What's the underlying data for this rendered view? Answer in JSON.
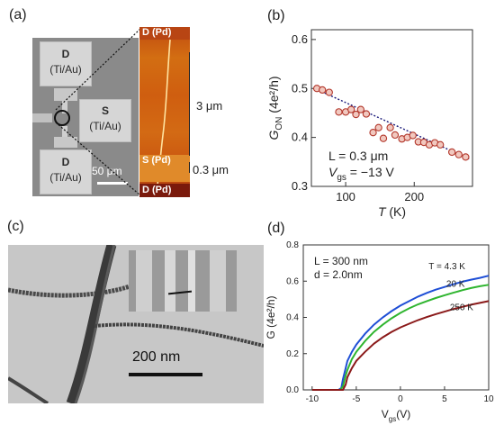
{
  "panel_a": {
    "label": "(a)",
    "pad_top": {
      "name": "D",
      "material": "(Ti/Au)"
    },
    "pad_mid": {
      "name": "S",
      "material": "(Ti/Au)"
    },
    "pad_bot": {
      "name": "D",
      "material": "(Ti/Au)"
    },
    "scale_sem": "50 μm",
    "afm_top": "D (Pd)",
    "afm_mid": "S (Pd)",
    "afm_bot": "D (Pd)",
    "scale_3um": "3 μm",
    "scale_03um": "0.3 μm"
  },
  "panel_c": {
    "label": "(c)",
    "scale": "200 nm"
  },
  "chart_data": [
    {
      "panel": "(b)",
      "type": "scatter",
      "xlabel_main": "T",
      "xlabel_unit": " (K)",
      "ylabel_main": "G",
      "ylabel_sub": "ON",
      "ylabel_unit": " (4e²/h)",
      "xlim": [
        50,
        285
      ],
      "ylim": [
        0.3,
        0.62
      ],
      "xticks": [
        100,
        200
      ],
      "yticks": [
        0.3,
        0.4,
        0.5,
        0.6
      ],
      "annotations": {
        "L": "L = 0.3 μm",
        "V_name": "V",
        "V_sub": "gs",
        "V_val": " = −13 V"
      },
      "points": [
        [
          58,
          0.5
        ],
        [
          66,
          0.497
        ],
        [
          76,
          0.492
        ],
        [
          90,
          0.452
        ],
        [
          100,
          0.452
        ],
        [
          108,
          0.457
        ],
        [
          115,
          0.447
        ],
        [
          122,
          0.457
        ],
        [
          130,
          0.448
        ],
        [
          140,
          0.41
        ],
        [
          148,
          0.42
        ],
        [
          155,
          0.398
        ],
        [
          165,
          0.42
        ],
        [
          172,
          0.405
        ],
        [
          182,
          0.397
        ],
        [
          190,
          0.4
        ],
        [
          198,
          0.404
        ],
        [
          206,
          0.391
        ],
        [
          214,
          0.39
        ],
        [
          222,
          0.385
        ],
        [
          230,
          0.389
        ],
        [
          238,
          0.385
        ],
        [
          255,
          0.37
        ],
        [
          265,
          0.365
        ],
        [
          275,
          0.36
        ]
      ],
      "fit_line": [
        [
          55,
          0.5
        ],
        [
          280,
          0.356
        ]
      ]
    },
    {
      "panel": "(d)",
      "type": "line",
      "xlabel_main": "V",
      "xlabel_sub": "gs",
      "xlabel_unit": "(V)",
      "ylabel": "G (4e²/h)",
      "xlim": [
        -11,
        10
      ],
      "ylim": [
        0,
        0.8
      ],
      "xticks": [
        -10,
        -5,
        0,
        5,
        10
      ],
      "yticks": [
        0.0,
        0.2,
        0.4,
        0.6,
        0.8
      ],
      "annotations": {
        "L": "L = 300 nm",
        "d": "d = 2.0nm"
      },
      "series": [
        {
          "name": "T = 4.3 K",
          "color": "#1f4fd6",
          "x": [
            -10,
            -7,
            -6.7,
            -6.5,
            -6.2,
            -6,
            -5.5,
            -5,
            -4,
            -3,
            -2,
            -1,
            0,
            1,
            2,
            3,
            4,
            5,
            6,
            7,
            8,
            9,
            10
          ],
          "y": [
            0,
            0,
            0.01,
            0.06,
            0.12,
            0.16,
            0.21,
            0.25,
            0.31,
            0.36,
            0.4,
            0.435,
            0.465,
            0.49,
            0.515,
            0.535,
            0.553,
            0.568,
            0.583,
            0.597,
            0.608,
            0.618,
            0.63
          ]
        },
        {
          "name": "20 K",
          "color": "#2fb52f",
          "x": [
            -10,
            -6.8,
            -6.5,
            -6.2,
            -6,
            -5.5,
            -5,
            -4,
            -3,
            -2,
            -1,
            0,
            1,
            2,
            3,
            4,
            5,
            6,
            7,
            8,
            9,
            10
          ],
          "y": [
            0,
            0,
            0.02,
            0.08,
            0.11,
            0.17,
            0.21,
            0.27,
            0.32,
            0.36,
            0.395,
            0.425,
            0.45,
            0.472,
            0.49,
            0.507,
            0.522,
            0.536,
            0.55,
            0.562,
            0.572,
            0.58
          ]
        },
        {
          "name": "250 K",
          "color": "#8b1a1a",
          "x": [
            -10,
            -6.5,
            -6.2,
            -6,
            -5.5,
            -5,
            -4,
            -3,
            -2,
            -1,
            0,
            1,
            2,
            3,
            4,
            5,
            6,
            7,
            8,
            9,
            10
          ],
          "y": [
            0,
            0,
            0.03,
            0.07,
            0.12,
            0.16,
            0.21,
            0.255,
            0.29,
            0.32,
            0.345,
            0.365,
            0.385,
            0.402,
            0.418,
            0.432,
            0.446,
            0.458,
            0.47,
            0.48,
            0.49
          ]
        }
      ]
    }
  ]
}
